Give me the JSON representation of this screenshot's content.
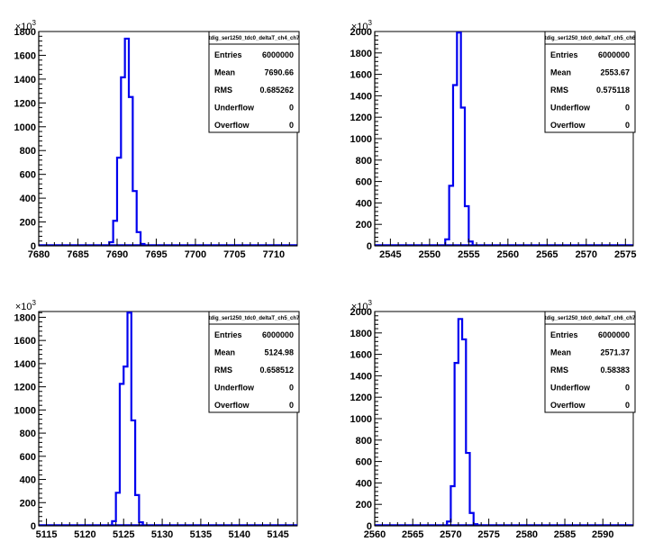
{
  "chart_data": [
    {
      "type": "histogram",
      "name": "tdig_ser1250_tdc0_deltaT_ch4_ch7",
      "xlim": [
        7680,
        7713
      ],
      "ylim": [
        0,
        1800
      ],
      "x_ticks": [
        7680,
        7685,
        7690,
        7695,
        7700,
        7705,
        7710
      ],
      "y_ticks": [
        0,
        200,
        400,
        600,
        800,
        1000,
        1200,
        1400,
        1600,
        1800
      ],
      "y_multiplier": "×10",
      "y_multiplier_exp": "3",
      "bin_width": 0.5,
      "bins": [
        {
          "x": 7689.0,
          "y": 30
        },
        {
          "x": 7689.5,
          "y": 210
        },
        {
          "x": 7690.0,
          "y": 740
        },
        {
          "x": 7690.5,
          "y": 1415
        },
        {
          "x": 7691.0,
          "y": 1740
        },
        {
          "x": 7691.5,
          "y": 1250
        },
        {
          "x": 7692.0,
          "y": 460
        },
        {
          "x": 7692.5,
          "y": 115
        },
        {
          "x": 7693.0,
          "y": 15
        }
      ],
      "stats": {
        "title": "tdig_ser1250_tdc0_deltaT_ch4_ch7",
        "rows": [
          {
            "label": "Entries",
            "value": "6000000"
          },
          {
            "label": "Mean",
            "value": "7690.66"
          },
          {
            "label": "RMS",
            "value": "0.685262"
          },
          {
            "label": "Underflow",
            "value": "0"
          },
          {
            "label": "Overflow",
            "value": "0"
          }
        ]
      }
    },
    {
      "type": "histogram",
      "name": "tdig_ser1250_tdc0_deltaT_ch5_ch6",
      "xlim": [
        2543,
        2576
      ],
      "ylim": [
        0,
        2000
      ],
      "x_ticks": [
        2545,
        2550,
        2555,
        2560,
        2565,
        2570,
        2575
      ],
      "y_ticks": [
        0,
        200,
        400,
        600,
        800,
        1000,
        1200,
        1400,
        1600,
        1800,
        2000
      ],
      "y_multiplier": "×10",
      "y_multiplier_exp": "3",
      "bin_width": 0.5,
      "bins": [
        {
          "x": 2552.0,
          "y": 60
        },
        {
          "x": 2552.5,
          "y": 560
        },
        {
          "x": 2553.0,
          "y": 1500
        },
        {
          "x": 2553.5,
          "y": 1990
        },
        {
          "x": 2554.0,
          "y": 1290
        },
        {
          "x": 2554.5,
          "y": 370
        },
        {
          "x": 2555.0,
          "y": 40
        }
      ],
      "stats": {
        "title": "tdig_ser1250_tdc0_deltaT_ch5_ch6",
        "rows": [
          {
            "label": "Entries",
            "value": "6000000"
          },
          {
            "label": "Mean",
            "value": "2553.67"
          },
          {
            "label": "RMS",
            "value": "0.575118"
          },
          {
            "label": "Underflow",
            "value": "0"
          },
          {
            "label": "Overflow",
            "value": "0"
          }
        ]
      }
    },
    {
      "type": "histogram",
      "name": "tdig_ser1250_tdc0_deltaT_ch5_ch7",
      "xlim": [
        5114,
        5147.5
      ],
      "ylim": [
        0,
        1850
      ],
      "x_ticks": [
        5115,
        5120,
        5125,
        5130,
        5135,
        5140,
        5145
      ],
      "y_ticks": [
        0,
        200,
        400,
        600,
        800,
        1000,
        1200,
        1400,
        1600,
        1800
      ],
      "y_multiplier": "×10",
      "y_multiplier_exp": "3",
      "bin_width": 0.5,
      "bins": [
        {
          "x": 5123.5,
          "y": 40
        },
        {
          "x": 5124.0,
          "y": 285
        },
        {
          "x": 5124.5,
          "y": 1225
        },
        {
          "x": 5125.0,
          "y": 1375
        },
        {
          "x": 5125.5,
          "y": 1840
        },
        {
          "x": 5126.0,
          "y": 910
        },
        {
          "x": 5126.5,
          "y": 265
        },
        {
          "x": 5127.0,
          "y": 30
        }
      ],
      "stats": {
        "title": "tdig_ser1250_tdc0_deltaT_ch5_ch7",
        "rows": [
          {
            "label": "Entries",
            "value": "6000000"
          },
          {
            "label": "Mean",
            "value": "5124.98"
          },
          {
            "label": "RMS",
            "value": "0.658512"
          },
          {
            "label": "Underflow",
            "value": "0"
          },
          {
            "label": "Overflow",
            "value": "0"
          }
        ]
      }
    },
    {
      "type": "histogram",
      "name": "tdig_ser1250_tdc0_deltaT_ch6_ch7",
      "xlim": [
        2560,
        2594
      ],
      "ylim": [
        0,
        2000
      ],
      "x_ticks": [
        2560,
        2565,
        2570,
        2575,
        2580,
        2585,
        2590
      ],
      "y_ticks": [
        0,
        200,
        400,
        600,
        800,
        1000,
        1200,
        1400,
        1600,
        1800,
        2000
      ],
      "y_multiplier": "×10",
      "y_multiplier_exp": "3",
      "bin_width": 0.5,
      "bins": [
        {
          "x": 2569.5,
          "y": 40
        },
        {
          "x": 2570.0,
          "y": 370
        },
        {
          "x": 2570.5,
          "y": 1520
        },
        {
          "x": 2571.0,
          "y": 1930
        },
        {
          "x": 2571.5,
          "y": 1740
        },
        {
          "x": 2572.0,
          "y": 680
        },
        {
          "x": 2572.5,
          "y": 120
        },
        {
          "x": 2573.0,
          "y": 15
        }
      ],
      "stats": {
        "title": "tdig_ser1250_tdc0_deltaT_ch6_ch7",
        "rows": [
          {
            "label": "Entries",
            "value": "6000000"
          },
          {
            "label": "Mean",
            "value": "2571.37"
          },
          {
            "label": "RMS",
            "value": "0.58383"
          },
          {
            "label": "Underflow",
            "value": "0"
          },
          {
            "label": "Overflow",
            "value": "0"
          }
        ]
      }
    }
  ],
  "colors": {
    "histogram_line": "#0000ee",
    "axis": "#000000",
    "background": "#ffffff"
  }
}
